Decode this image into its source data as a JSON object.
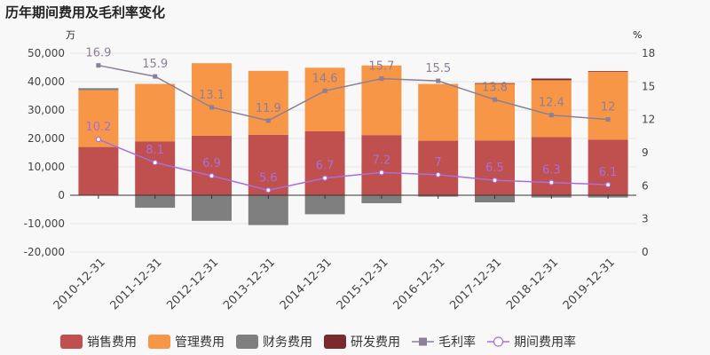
{
  "chart_data": {
    "type": "bar",
    "title": "历年期间费用及毛利率变化",
    "y_left_unit": "万",
    "y_right_unit": "%",
    "categories": [
      "2010-12-31",
      "2011-12-31",
      "2012-12-31",
      "2013-12-31",
      "2014-12-31",
      "2015-12-31",
      "2016-12-31",
      "2017-12-31",
      "2018-12-31",
      "2019-12-31"
    ],
    "ylim_left": [
      -20000,
      50000
    ],
    "yticks_left": [
      -20000,
      -10000,
      0,
      10000,
      20000,
      30000,
      40000,
      50000
    ],
    "ytick_labels_left": [
      "-20,000",
      "-10,000",
      "0",
      "10,000",
      "20,000",
      "30,000",
      "40,000",
      "50,000"
    ],
    "ylim_right": [
      0,
      18
    ],
    "yticks_right": [
      0,
      3,
      6,
      9,
      12,
      15,
      18
    ],
    "ytick_labels_right": [
      "0",
      "3",
      "6",
      "9",
      "12",
      "15",
      "18"
    ],
    "legend_position": "bottom",
    "series": [
      {
        "name": "销售费用",
        "kind": "bar",
        "axis": "left",
        "color": "#c0504d",
        "values": [
          17000,
          19000,
          21000,
          21300,
          22500,
          21200,
          19200,
          19300,
          20500,
          19600
        ]
      },
      {
        "name": "管理费用",
        "kind": "bar",
        "axis": "left",
        "color": "#f79646",
        "values": [
          20000,
          20200,
          25500,
          22500,
          22400,
          24500,
          20000,
          20000,
          20000,
          23900
        ]
      },
      {
        "name": "财务费用",
        "kind": "bar",
        "axis": "left",
        "color": "#7f7f7f",
        "values": [
          700,
          -4400,
          -9000,
          -10500,
          -6700,
          -2800,
          -500,
          -2500,
          -800,
          -800
        ]
      },
      {
        "name": "研发费用",
        "kind": "bar",
        "axis": "left",
        "color": "#7b2b2b",
        "values": [
          0,
          0,
          0,
          0,
          0,
          0,
          0,
          200,
          600,
          200
        ]
      },
      {
        "name": "毛利率",
        "kind": "line",
        "axis": "right",
        "color": "#8c7f98",
        "marker": "square",
        "values": [
          16.9,
          15.9,
          13.1,
          11.9,
          14.6,
          15.7,
          15.5,
          13.8,
          12.4,
          12
        ],
        "labels": [
          "16.9",
          "15.9",
          "13.1",
          "11.9",
          "14.6",
          "15.7",
          "15.5",
          "13.8",
          "12.4",
          "12"
        ]
      },
      {
        "name": "期间费用率",
        "kind": "line",
        "axis": "right",
        "color": "#a86fd8",
        "marker": "circle",
        "values": [
          10.2,
          8.1,
          6.9,
          5.6,
          6.7,
          7.2,
          7,
          6.5,
          6.3,
          6.1
        ],
        "labels": [
          "10.2",
          "8.1",
          "6.9",
          "5.6",
          "6.7",
          "7.2",
          "7",
          "6.5",
          "6.3",
          "6.1"
        ]
      }
    ]
  }
}
